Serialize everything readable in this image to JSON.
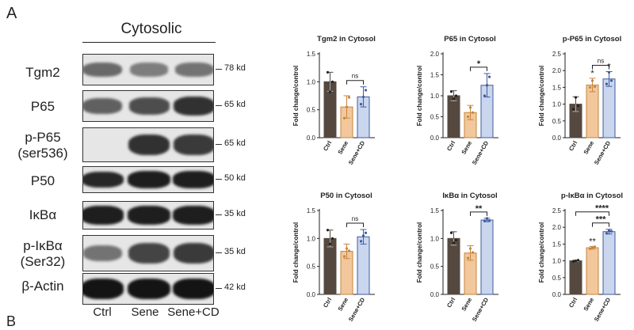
{
  "figure": {
    "panel_letter": "A",
    "cutoff_letter": "B",
    "blot_section_title": "Cytosolic",
    "lane_labels": [
      "Ctrl",
      "Sene",
      "Sene+CD"
    ],
    "blots": [
      {
        "label": "Tgm2",
        "size": "78 kd",
        "intensities": [
          0.55,
          0.45,
          0.5
        ]
      },
      {
        "label": "P65",
        "size": "65 kd",
        "intensities": [
          0.6,
          0.7,
          0.85
        ]
      },
      {
        "label": "p-P65\n(ser536)",
        "size": "65 kd",
        "intensities": [
          0.0,
          0.85,
          0.8
        ]
      },
      {
        "label": "P50",
        "size": "50 kd",
        "intensities": [
          0.9,
          0.95,
          0.95
        ]
      },
      {
        "label": "IκBα",
        "size": "35 kd",
        "intensities": [
          0.95,
          0.95,
          0.95
        ]
      },
      {
        "label": "p-IκBα\n(Ser32)",
        "size": "35 kd",
        "intensities": [
          0.5,
          0.75,
          0.8
        ]
      },
      {
        "label": "β-Actin",
        "size": "42 kd",
        "intensities": [
          1.0,
          1.0,
          1.0
        ]
      }
    ]
  },
  "colors": {
    "ctrl": "#55493f",
    "sene": "#f2c79b",
    "sene_cd": "#c9d6ee",
    "sene_edge": "#c6863f",
    "sene_cd_edge": "#3f5b9e"
  },
  "chart_data": [
    {
      "type": "bar",
      "title": "Tgm2 in Cytosol",
      "ylabel": "Fold change/control",
      "categories": [
        "Ctrl",
        "Sene",
        "Sene+CD"
      ],
      "values": [
        1.0,
        0.55,
        0.73
      ],
      "errors": [
        0.17,
        0.2,
        0.18
      ],
      "points": [
        [
          1.17,
          0.82,
          1.0
        ],
        [
          0.35,
          0.55,
          0.72
        ],
        [
          0.6,
          0.73,
          0.85
        ]
      ],
      "ylim": [
        0,
        1.5
      ],
      "yticks": [
        "0.0",
        "0.5",
        "1.0",
        "1.5"
      ],
      "annotations": [
        {
          "text": "ns",
          "from": 1,
          "to": 2
        }
      ],
      "marks": [
        "",
        "",
        ""
      ]
    },
    {
      "type": "bar",
      "title": "P65 in Cytosol",
      "ylabel": "Fold change/control",
      "categories": [
        "Ctrl",
        "Sene",
        "Sene+CD"
      ],
      "values": [
        1.0,
        0.6,
        1.25
      ],
      "errors": [
        0.12,
        0.17,
        0.28
      ],
      "points": [
        [
          1.1,
          0.93,
          1.0
        ],
        [
          0.5,
          0.72,
          0.6
        ],
        [
          1.0,
          1.25,
          1.45
        ]
      ],
      "ylim": [
        0,
        2.0
      ],
      "yticks": [
        "0.0",
        "0.5",
        "1.0",
        "1.5",
        "2.0"
      ],
      "annotations": [
        {
          "text": "*",
          "from": 1,
          "to": 2
        }
      ],
      "marks": [
        "",
        "",
        ""
      ]
    },
    {
      "type": "bar",
      "title": "p-P65 in Cytosol",
      "ylabel": "Fold change/control",
      "categories": [
        "Ctrl",
        "Sene",
        "Sene+CD"
      ],
      "values": [
        1.0,
        1.57,
        1.75
      ],
      "errors": [
        0.22,
        0.2,
        0.22
      ],
      "points": [
        [
          0.85,
          1.2,
          0.95
        ],
        [
          1.5,
          1.7,
          1.52
        ],
        [
          1.6,
          1.95,
          1.7
        ]
      ],
      "ylim": [
        0,
        2.5
      ],
      "yticks": [
        "0.0",
        "0.5",
        "1.0",
        "1.5",
        "2.0",
        "2.5"
      ],
      "annotations": [
        {
          "text": "ns",
          "from": 1,
          "to": 2
        }
      ],
      "marks": [
        "",
        "*",
        "*"
      ]
    },
    {
      "type": "bar",
      "title": "P50 in Cytosol",
      "ylabel": "Fold change/control",
      "categories": [
        "Ctrl",
        "Sene",
        "Sene+CD"
      ],
      "values": [
        1.0,
        0.77,
        1.03
      ],
      "errors": [
        0.15,
        0.13,
        0.13
      ],
      "points": [
        [
          1.15,
          0.9,
          1.0
        ],
        [
          0.68,
          0.82,
          0.78
        ],
        [
          0.95,
          1.05,
          1.1
        ]
      ],
      "ylim": [
        0,
        1.5
      ],
      "yticks": [
        "0.0",
        "0.5",
        "1.0",
        "1.5"
      ],
      "annotations": [
        {
          "text": "ns",
          "from": 1,
          "to": 2
        }
      ],
      "marks": [
        "",
        "",
        ""
      ]
    },
    {
      "type": "bar",
      "title": "IκBα in Cytosol",
      "ylabel": "Fold change/control",
      "categories": [
        "Ctrl",
        "Sene",
        "Sene+CD"
      ],
      "values": [
        1.0,
        0.74,
        1.33
      ],
      "errors": [
        0.12,
        0.13,
        0.03
      ],
      "points": [
        [
          1.1,
          0.92,
          0.97
        ],
        [
          0.65,
          0.82,
          0.75
        ],
        [
          1.31,
          1.36,
          1.32
        ]
      ],
      "ylim": [
        0,
        1.5
      ],
      "yticks": [
        "0.0",
        "0.5",
        "1.0",
        "1.5"
      ],
      "annotations": [
        {
          "text": "**",
          "from": 1,
          "to": 2
        }
      ],
      "marks": [
        "",
        "",
        ""
      ]
    },
    {
      "type": "bar",
      "title": "p-IκBα in Cytosol",
      "ylabel": "Fold change/control",
      "categories": [
        "Ctrl",
        "Sene",
        "Sene+CD"
      ],
      "values": [
        1.0,
        1.39,
        1.87
      ],
      "errors": [
        0.02,
        0.04,
        0.07
      ],
      "points": [
        [
          0.98,
          1.0,
          1.02
        ],
        [
          1.36,
          1.4,
          1.42
        ],
        [
          1.82,
          1.9,
          1.88
        ]
      ],
      "ylim": [
        0,
        2.5
      ],
      "yticks": [
        "0.0",
        "0.5",
        "1.0",
        "1.5",
        "2.0",
        "2.5"
      ],
      "annotations": [
        {
          "text": "***",
          "from": 1,
          "to": 2
        },
        {
          "text": "****",
          "from": 0,
          "to": 2
        }
      ],
      "marks": [
        "",
        "**",
        ""
      ]
    }
  ]
}
